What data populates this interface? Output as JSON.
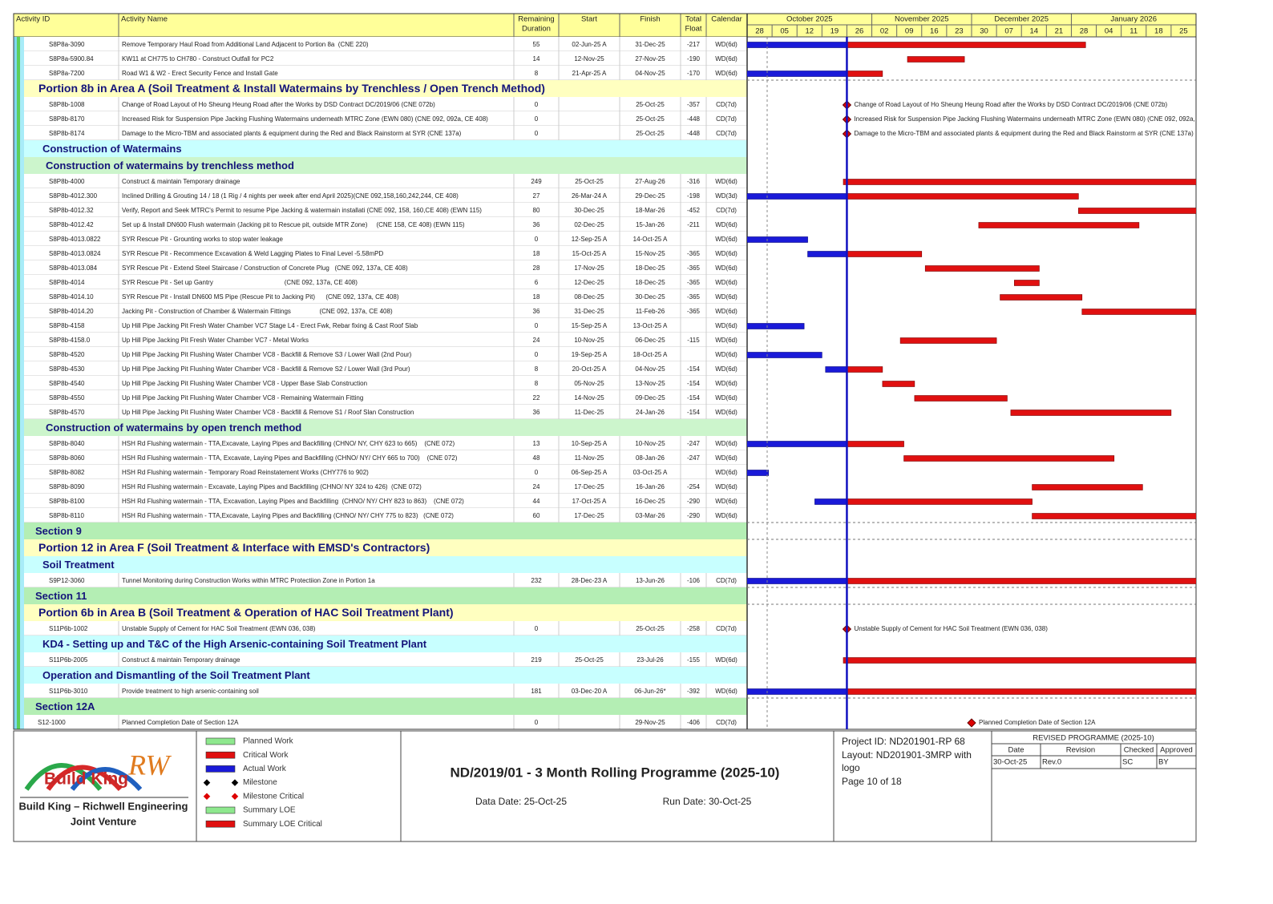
{
  "header": {
    "columns": [
      "Activity ID",
      "Activity Name",
      "Remaining Duration",
      "Start",
      "Finish",
      "Total Float",
      "Calendar"
    ]
  },
  "timeline": {
    "months": [
      "October 2025",
      "November 2025",
      "December 2025",
      "January 2026"
    ],
    "weeks": [
      "28",
      "05",
      "12",
      "19",
      "26",
      "02",
      "09",
      "16",
      "23",
      "30",
      "07",
      "14",
      "21",
      "28",
      "04",
      "11",
      "18",
      "25"
    ]
  },
  "rows": [
    {
      "id": "S8P8a-3090",
      "name": "Remove Temporary Haul Road from Additional Land Adjacent to Portion 8a  (CNE 220)",
      "remaining": 55,
      "start": "02-Jun-25 A",
      "finish": "31-Dec-25",
      "float": -217,
      "calendar": "WD(6d)"
    },
    {
      "id": "S8P8a-5900.84",
      "name": "KW11 at CH775 to CH780 - Construct Outfall for PC2",
      "remaining": 14,
      "start": "12-Nov-25",
      "finish": "27-Nov-25",
      "float": -190,
      "calendar": "WD(6d)"
    },
    {
      "id": "S8P8a-7200",
      "name": "Road W1 & W2 - Erect Security Fence and Install Gate",
      "remaining": 8,
      "start": "21-Apr-25 A",
      "finish": "04-Nov-25",
      "float": -170,
      "calendar": "WD(6d)"
    },
    {
      "band": "Portion 8b in Area A  (Soil Treatment & Install Watermains by Trenchless / Open Trench Method)",
      "color": "#ffffc0"
    },
    {
      "id": "S8P8b-1008",
      "name": "Change of Road Layout of Ho Sheung Heung Road after the Works by DSD Contract DC/2019/06 (CNE 072b)",
      "remaining": 0,
      "finish": "25-Oct-25",
      "float": -357,
      "calendar": "CD(7d)"
    },
    {
      "id": "S8P8b-8170",
      "name": "Increased Risk for Suspension Pipe Jacking Flushing Watermains underneath MTRC Zone (EWN 080) (CNE 092, 092a, CE 408)",
      "remaining": 0,
      "finish": "25-Oct-25",
      "float": -448,
      "calendar": "CD(7d)"
    },
    {
      "id": "S8P8b-8174",
      "name": "Damage to the Micro-TBM and associated plants & equipment during the Red and Black Rainstorm at SYR (CNE 137a)",
      "remaining": 0,
      "finish": "25-Oct-25",
      "float": -448,
      "calendar": "CD(7d)"
    },
    {
      "band": "Construction of Watermains",
      "color": "#c8ffff"
    },
    {
      "band": "Construction of watermains by trenchless method",
      "color": "#ccf5cc"
    },
    {
      "id": "S8P8b-4000",
      "name": "Construct & maintain Temporary drainage",
      "remaining": 249,
      "start": "25-Oct-25",
      "finish": "27-Aug-26",
      "float": -316,
      "calendar": "WD(6d)"
    },
    {
      "id": "S8P8b-4012.300",
      "name": "Inclined Drilling & Grouting 14 / 18 (1 Rig / 4 nights per week after end April 2025)(CNE 092,158,160,242,244, CE 408)",
      "remaining": 27,
      "start": "26-Mar-24 A",
      "finish": "29-Dec-25",
      "float": -198,
      "calendar": "WD(3d)"
    },
    {
      "id": "S8P8b-4012.32",
      "name": "Verify, Report and Seek MTRC's Permit to resume Pipe Jacking & watermain installati (CNE 092, 158, 160,CE 408) (EWN 115)",
      "remaining": 80,
      "start": "30-Dec-25",
      "finish": "18-Mar-26",
      "float": -452,
      "calendar": "CD(7d)"
    },
    {
      "id": "S8P8b-4012.42",
      "name": "Set up & Install DN600 Flush watermain (Jacking pit to Rescue pit, outside MTR Zone)     (CNE 158, CE 408) (EWN 115)",
      "remaining": 36,
      "start": "02-Dec-25",
      "finish": "15-Jan-26",
      "float": -211,
      "calendar": "WD(6d)"
    },
    {
      "id": "S8P8b-4013.0822",
      "name": "SYR Rescue Pit - Grounting works to stop water leakage",
      "remaining": 0,
      "start": "12-Sep-25 A",
      "finish": "14-Oct-25 A",
      "calendar": "WD(6d)"
    },
    {
      "id": "S8P8b-4013.0824",
      "name": "SYR Rescue Pit - Recommence Excavation & Weld Lagging Plates to Final Level -5.58mPD",
      "remaining": 18,
      "start": "15-Oct-25 A",
      "finish": "15-Nov-25",
      "float": -365,
      "calendar": "WD(6d)"
    },
    {
      "id": "S8P8b-4013.084",
      "name": "SYR Rescue Pit - Extend Steel Staircase / Construction of Concrete Plug   (CNE 092, 137a, CE 408)",
      "remaining": 28,
      "start": "17-Nov-25",
      "finish": "18-Dec-25",
      "float": -365,
      "calendar": "WD(6d)"
    },
    {
      "id": "S8P8b-4014",
      "name": "SYR Rescue Pit - Set up Gantry                                        (CNE 092, 137a, CE 408)",
      "remaining": 6,
      "start": "12-Dec-25",
      "finish": "18-Dec-25",
      "float": -365,
      "calendar": "WD(6d)"
    },
    {
      "id": "S8P8b-4014.10",
      "name": "SYR Rescue Pit - Install DN600 MS Pipe (Rescue Pit to Jacking Pit)      (CNE 092, 137a, CE 408)",
      "remaining": 18,
      "start": "08-Dec-25",
      "finish": "30-Dec-25",
      "float": -365,
      "calendar": "WD(6d)"
    },
    {
      "id": "S8P8b-4014.20",
      "name": "Jacking Pit - Construction of Chamber & Watermain Fittings                (CNE 092, 137a, CE 408)",
      "remaining": 36,
      "start": "31-Dec-25",
      "finish": "11-Feb-26",
      "float": -365,
      "calendar": "WD(6d)"
    },
    {
      "id": "S8P8b-4158",
      "name": "Up Hill Pipe Jacking Pit Fresh Water Chamber VC7 Stage L4 - Erect Fwk, Rebar fixing & Cast Roof Slab",
      "remaining": 0,
      "start": "15-Sep-25 A",
      "finish": "13-Oct-25 A",
      "calendar": "WD(6d)"
    },
    {
      "id": "S8P8b-4158.0",
      "name": "Up Hill Pipe Jacking Pit Fresh Water Chamber VC7 - Metal Works",
      "remaining": 24,
      "start": "10-Nov-25",
      "finish": "06-Dec-25",
      "float": -115,
      "calendar": "WD(6d)"
    },
    {
      "id": "S8P8b-4520",
      "name": "Up Hill Pipe Jacking Pit Flushing Water Chamber VC8 - Backfill & Remove S3 / Lower Wall (2nd Pour)",
      "remaining": 0,
      "start": "19-Sep-25 A",
      "finish": "18-Oct-25 A",
      "calendar": "WD(6d)"
    },
    {
      "id": "S8P8b-4530",
      "name": "Up Hill Pipe Jacking Pit Flushing Water Chamber VC8 - Backfill & Remove S2 / Lower Wall (3rd Pour)",
      "remaining": 8,
      "start": "20-Oct-25 A",
      "finish": "04-Nov-25",
      "float": -154,
      "calendar": "WD(6d)"
    },
    {
      "id": "S8P8b-4540",
      "name": "Up Hill Pipe Jacking Pit Flushing Water Chamber VC8 - Upper Base Slab Construction",
      "remaining": 8,
      "start": "05-Nov-25",
      "finish": "13-Nov-25",
      "float": -154,
      "calendar": "WD(6d)"
    },
    {
      "id": "S8P8b-4550",
      "name": "Up Hill Pipe Jacking Pit Flushing Water Chamber VC8 - Remaining Watermain Fitting",
      "remaining": 22,
      "start": "14-Nov-25",
      "finish": "09-Dec-25",
      "float": -154,
      "calendar": "WD(6d)"
    },
    {
      "id": "S8P8b-4570",
      "name": "Up Hill Pipe Jacking Pit Flushing Water Chamber VC8 - Backfill & Remove S1 / Roof Slan Construction",
      "remaining": 36,
      "start": "11-Dec-25",
      "finish": "24-Jan-26",
      "float": -154,
      "calendar": "WD(6d)"
    },
    {
      "band": "Construction of watermains by open trench method",
      "color": "#ccf5cc"
    },
    {
      "id": "S8P8b-8040",
      "name": "HSH Rd Flushing watermain - TTA,Excavate, Laying Pipes and Backfilling (CHNO/ NY, CHY 623 to 665)    (CNE 072)",
      "remaining": 13,
      "start": "10-Sep-25 A",
      "finish": "10-Nov-25",
      "float": -247,
      "calendar": "WD(6d)"
    },
    {
      "id": "S8P8b-8060",
      "name": "HSH Rd Flushing watermain - TTA, Excavate, Laying Pipes and Backfilling (CHNO/ NY/ CHY 665 to 700)    (CNE 072)",
      "remaining": 48,
      "start": "11-Nov-25",
      "finish": "08-Jan-26",
      "float": -247,
      "calendar": "WD(6d)"
    },
    {
      "id": "S8P8b-8082",
      "name": "HSH Rd Flushing watermain - Temporary Road Reinstatement Works (CHY776 to 902)",
      "remaining": 0,
      "start": "06-Sep-25 A",
      "finish": "03-Oct-25 A",
      "calendar": "WD(6d)"
    },
    {
      "id": "S8P8b-8090",
      "name": "HSH Rd Flushing watermain - Excavate, Laying Pipes and Backfilling (CHNO/ NY 324 to 426)  (CNE 072)",
      "remaining": 24,
      "start": "17-Dec-25",
      "finish": "16-Jan-26",
      "float": -254,
      "calendar": "WD(6d)"
    },
    {
      "id": "S8P8b-8100",
      "name": "HSH Rd Flushing watermain - TTA, Excavation, Laying Pipes and Backfilling  (CHNO/ NY/ CHY 823 to 863)    (CNE 072)",
      "remaining": 44,
      "start": "17-Oct-25 A",
      "finish": "16-Dec-25",
      "float": -290,
      "calendar": "WD(6d)"
    },
    {
      "id": "S8P8b-8110",
      "name": "HSH Rd Flushing watermain - TTA,Excavate, Laying Pipes and Backfilling (CHNO/ NY/ CHY 775 to 823)   (CNE 072)",
      "remaining": 60,
      "start": "17-Dec-25",
      "finish": "03-Mar-26",
      "float": -290,
      "calendar": "WD(6d)"
    },
    {
      "band": "Section 9",
      "color": "#b4eeb4"
    },
    {
      "band": "Portion 12 in Area F  (Soil Treatment & Interface with EMSD's Contractors)",
      "color": "#ffffc0"
    },
    {
      "band": "Soil Treatment",
      "color": "#c8ffff"
    },
    {
      "id": "S9P12-3060",
      "name": "Tunnel Monitoring during Construction Works within MTRC Protectiion Zone in Portion 1a",
      "remaining": 232,
      "start": "28-Dec-23 A",
      "finish": "13-Jun-26",
      "float": -106,
      "calendar": "CD(7d)"
    },
    {
      "band": "Section 11",
      "color": "#b4eeb4"
    },
    {
      "band": "Portion 6b in Area B  (Soil Treatment & Operation of HAC Soil Treatment Plant)",
      "color": "#ffffc0"
    },
    {
      "id": "S11P6b-1002",
      "name": "Unstable Supply of Cement for HAC Soil Treatment (EWN 036, 038)",
      "remaining": 0,
      "finish": "25-Oct-25",
      "float": -258,
      "calendar": "CD(7d)"
    },
    {
      "band": "KD4 - Setting up and T&C of the High Arsenic-containing Soil Treatment Plant",
      "color": "#c8ffff"
    },
    {
      "id": "S11P6b-2005",
      "name": "Construct & maintain Temporary drainage",
      "remaining": 219,
      "start": "25-Oct-25",
      "finish": "23-Jul-26",
      "float": -155,
      "calendar": "WD(6d)"
    },
    {
      "band": "Operation and Dismantling of the Soil Treatment Plant",
      "color": "#c8ffff"
    },
    {
      "id": "S11P6b-3010",
      "name": "Provide treatment to high arsenic-containing soil",
      "remaining": 181,
      "start": "03-Dec-20 A",
      "finish": "06-Jun-26*",
      "float": -392,
      "calendar": "WD(6d)"
    },
    {
      "band": "Section 12A",
      "color": "#b4eeb4"
    },
    {
      "id": "S12-1000",
      "name": "Planned Completion Date of Section 12A",
      "remaining": 0,
      "finish": "29-Nov-25",
      "float": -406,
      "calendar": "CD(7d)"
    }
  ],
  "logo": {
    "brand": "Build King",
    "mark": "RW",
    "line1": "Build King – Richwell Engineering",
    "line2": "Joint Venture"
  },
  "legend": [
    "Planned Work",
    "Critical Work",
    "Actual Work",
    "Milestone",
    "Milestone Critical",
    "Summary LOE",
    "Summary LOE Critical"
  ],
  "footer": {
    "title": "ND/2019/01 - 3 Month Rolling Programme (2025-10)",
    "data_date": "Data Date: 25-Oct-25",
    "run_date": "Run Date: 30-Oct-25",
    "project": [
      "Project ID: ND201901-RP 68",
      "Layout: ND201901-3MRP with",
      "logo",
      "Page 10 of 18"
    ]
  },
  "revision": {
    "title": "REVISED PROGRAMME (2025-10)",
    "columns": [
      "Date",
      "Revision",
      "Checked",
      "Approved"
    ],
    "rows": [
      [
        "30-Oct-25",
        "Rev.0",
        "SC",
        "BY"
      ]
    ]
  }
}
